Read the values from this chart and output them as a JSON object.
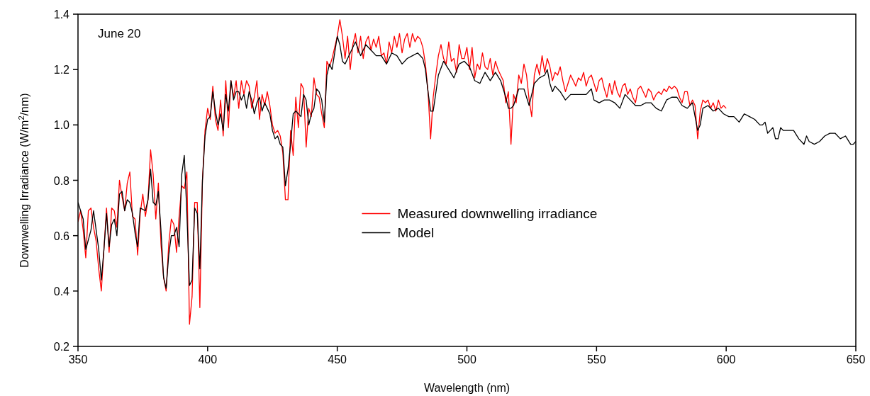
{
  "chart_data": {
    "type": "line",
    "xlabel": "Wavelength (nm)",
    "ylabel": "Downwelling Irradiance (W/m$^{2}$/nm)",
    "annotations": [
      "June 20"
    ],
    "xlim": [
      350,
      650
    ],
    "ylim": [
      0.2,
      1.4
    ],
    "xticks": [
      350,
      400,
      450,
      500,
      550,
      600,
      650
    ],
    "yticks": [
      0.2,
      0.4,
      0.6,
      0.8,
      {
        "value": 1,
        "label": "1.0"
      },
      1.2,
      1.4
    ],
    "grid": false,
    "legend": "center",
    "line_style": "solid",
    "series": [
      {
        "name": "Measured downwelling irradiance",
        "color": "#ff0000",
        "x": [
          350,
          351,
          352,
          353,
          354,
          355,
          356,
          357,
          358,
          359,
          360,
          361,
          362,
          363,
          364,
          365,
          366,
          367,
          368,
          369,
          370,
          371,
          372,
          373,
          374,
          375,
          376,
          377,
          378,
          379,
          380,
          381,
          382,
          383,
          384,
          385,
          386,
          387,
          388,
          389,
          390,
          391,
          392,
          393,
          394,
          395,
          396,
          397,
          398,
          399,
          400,
          401,
          402,
          403,
          404,
          405,
          406,
          407,
          408,
          409,
          410,
          411,
          412,
          413,
          414,
          415,
          416,
          417,
          418,
          419,
          420,
          421,
          422,
          423,
          424,
          425,
          426,
          427,
          428,
          429,
          430,
          431,
          432,
          433,
          434,
          435,
          436,
          437,
          438,
          439,
          440,
          441,
          442,
          443,
          444,
          445,
          446,
          447,
          448,
          449,
          450,
          451,
          452,
          453,
          454,
          455,
          456,
          457,
          458,
          459,
          460,
          461,
          462,
          463,
          464,
          465,
          466,
          467,
          468,
          469,
          470,
          471,
          472,
          473,
          474,
          475,
          476,
          477,
          478,
          479,
          480,
          481,
          482,
          483,
          484,
          485,
          486,
          487,
          488,
          489,
          490,
          491,
          492,
          493,
          494,
          495,
          496,
          497,
          498,
          499,
          500,
          501,
          502,
          503,
          504,
          505,
          506,
          507,
          508,
          509,
          510,
          511,
          512,
          513,
          514,
          515,
          516,
          517,
          518,
          519,
          520,
          521,
          522,
          523,
          524,
          525,
          526,
          527,
          528,
          529,
          530,
          531,
          532,
          533,
          534,
          535,
          536,
          537,
          538,
          539,
          540,
          541,
          542,
          543,
          544,
          545,
          546,
          547,
          548,
          549,
          550,
          551,
          552,
          553,
          554,
          555,
          556,
          557,
          558,
          559,
          560,
          561,
          562,
          563,
          564,
          565,
          566,
          567,
          568,
          569,
          570,
          571,
          572,
          573,
          574,
          575,
          576,
          577,
          578,
          579,
          580,
          581,
          582,
          583,
          584,
          585,
          586,
          587,
          588,
          589,
          590,
          591,
          592,
          593,
          594,
          595,
          596,
          597,
          598,
          599,
          600
        ],
        "values": [
          0.65,
          0.69,
          0.62,
          0.52,
          0.69,
          0.7,
          0.63,
          0.58,
          0.48,
          0.4,
          0.55,
          0.7,
          0.54,
          0.7,
          0.69,
          0.63,
          0.8,
          0.74,
          0.69,
          0.79,
          0.83,
          0.67,
          0.66,
          0.53,
          0.68,
          0.75,
          0.67,
          0.73,
          0.91,
          0.82,
          0.66,
          0.79,
          0.57,
          0.45,
          0.4,
          0.57,
          0.66,
          0.64,
          0.54,
          0.67,
          0.78,
          0.77,
          0.83,
          0.28,
          0.38,
          0.72,
          0.72,
          0.34,
          0.8,
          0.98,
          1.06,
          1.02,
          1.14,
          1.02,
          0.98,
          1.09,
          0.96,
          1.16,
          0.99,
          1.16,
          1.1,
          1.16,
          1.06,
          1.16,
          1.11,
          1.16,
          1.14,
          1.06,
          1.1,
          1.16,
          1.02,
          1.11,
          1.07,
          1.12,
          1.07,
          1.0,
          0.97,
          0.98,
          0.96,
          0.9,
          0.73,
          0.73,
          0.98,
          0.89,
          1.1,
          0.99,
          1.15,
          1.13,
          0.92,
          1.06,
          1.03,
          1.17,
          1.11,
          1.1,
          1.04,
          0.99,
          1.23,
          1.21,
          1.24,
          1.28,
          1.32,
          1.38,
          1.32,
          1.24,
          1.32,
          1.2,
          1.29,
          1.33,
          1.26,
          1.32,
          1.24,
          1.3,
          1.32,
          1.27,
          1.31,
          1.28,
          1.32,
          1.25,
          1.26,
          1.22,
          1.3,
          1.26,
          1.32,
          1.28,
          1.33,
          1.26,
          1.31,
          1.33,
          1.28,
          1.33,
          1.3,
          1.32,
          1.31,
          1.28,
          1.22,
          1.12,
          0.95,
          1.1,
          1.18,
          1.25,
          1.29,
          1.24,
          1.22,
          1.3,
          1.23,
          1.24,
          1.19,
          1.29,
          1.24,
          1.24,
          1.28,
          1.2,
          1.28,
          1.17,
          1.22,
          1.2,
          1.26,
          1.21,
          1.2,
          1.24,
          1.18,
          1.23,
          1.2,
          1.18,
          1.16,
          1.08,
          1.12,
          0.93,
          1.11,
          1.08,
          1.18,
          1.15,
          1.22,
          1.18,
          1.09,
          1.03,
          1.18,
          1.22,
          1.18,
          1.25,
          1.19,
          1.24,
          1.21,
          1.16,
          1.19,
          1.18,
          1.21,
          1.16,
          1.12,
          1.15,
          1.18,
          1.16,
          1.14,
          1.17,
          1.16,
          1.19,
          1.14,
          1.17,
          1.18,
          1.15,
          1.12,
          1.16,
          1.17,
          1.13,
          1.1,
          1.15,
          1.11,
          1.16,
          1.12,
          1.1,
          1.14,
          1.15,
          1.11,
          1.13,
          1.1,
          1.08,
          1.13,
          1.14,
          1.12,
          1.1,
          1.13,
          1.12,
          1.09,
          1.11,
          1.12,
          1.11,
          1.13,
          1.12,
          1.14,
          1.13,
          1.14,
          1.13,
          1.1,
          1.08,
          1.12,
          1.12,
          1.07,
          1.09,
          1.07,
          0.95,
          1.05,
          1.09,
          1.08,
          1.09,
          1.06,
          1.08,
          1.05,
          1.09,
          1.06,
          1.07,
          1.06
        ]
      },
      {
        "name": "Model",
        "color": "#000000",
        "x": [
          350,
          352,
          353,
          355,
          356,
          357,
          358,
          359,
          360,
          361,
          362,
          363,
          364,
          365,
          366,
          367,
          368,
          369,
          370,
          371,
          372,
          373,
          374,
          376,
          377,
          378,
          379,
          380,
          381,
          382,
          383,
          384,
          385,
          386,
          387,
          388,
          389,
          390,
          391,
          392,
          393,
          394,
          395,
          396,
          397,
          398,
          399,
          400,
          401,
          402,
          403,
          404,
          405,
          406,
          407,
          408,
          409,
          410,
          411,
          412,
          413,
          414,
          415,
          416,
          417,
          418,
          419,
          420,
          421,
          422,
          423,
          424,
          425,
          426,
          427,
          428,
          429,
          430,
          431,
          432,
          433,
          434,
          435,
          436,
          437,
          438,
          439,
          440,
          441,
          442,
          443,
          444,
          445,
          446,
          447,
          448,
          449,
          450,
          451,
          452,
          453,
          455,
          457,
          459,
          461,
          463,
          465,
          467,
          469,
          471,
          473,
          475,
          477,
          479,
          481,
          483,
          484,
          485,
          486,
          487,
          489,
          491,
          493,
          495,
          497,
          499,
          501,
          503,
          505,
          507,
          509,
          511,
          513,
          515,
          516,
          517,
          518,
          520,
          522,
          524,
          526,
          528,
          530,
          531,
          532,
          533,
          534,
          536,
          538,
          540,
          542,
          544,
          546,
          548,
          549,
          551,
          553,
          555,
          557,
          559,
          561,
          563,
          565,
          567,
          569,
          571,
          573,
          575,
          577,
          579,
          581,
          583,
          585,
          587,
          589,
          590,
          591,
          593,
          595,
          597,
          599,
          601,
          603,
          605,
          607,
          609,
          611,
          613,
          614,
          615,
          616,
          617,
          618,
          619,
          620,
          621,
          622,
          624,
          626,
          628,
          630,
          631,
          632,
          634,
          636,
          638,
          640,
          642,
          644,
          646,
          648,
          649,
          650
        ],
        "values": [
          0.72,
          0.66,
          0.55,
          0.62,
          0.69,
          0.62,
          0.55,
          0.44,
          0.55,
          0.68,
          0.56,
          0.64,
          0.66,
          0.6,
          0.75,
          0.76,
          0.69,
          0.73,
          0.72,
          0.68,
          0.61,
          0.56,
          0.7,
          0.69,
          0.73,
          0.84,
          0.72,
          0.71,
          0.76,
          0.62,
          0.45,
          0.41,
          0.53,
          0.6,
          0.6,
          0.63,
          0.56,
          0.82,
          0.89,
          0.68,
          0.42,
          0.44,
          0.7,
          0.68,
          0.48,
          0.8,
          0.96,
          1.02,
          1.03,
          1.12,
          1.05,
          1.0,
          1.04,
          0.98,
          1.11,
          1.05,
          1.16,
          1.09,
          1.12,
          1.12,
          1.09,
          1.11,
          1.06,
          1.12,
          1.09,
          1.04,
          1.08,
          1.1,
          1.05,
          1.08,
          1.06,
          1.04,
          0.98,
          0.95,
          0.96,
          0.93,
          0.92,
          0.78,
          0.84,
          0.93,
          1.04,
          1.05,
          1.04,
          1.03,
          1.11,
          1.09,
          1.0,
          1.04,
          1.06,
          1.13,
          1.12,
          1.09,
          1.01,
          1.18,
          1.22,
          1.2,
          1.26,
          1.32,
          1.29,
          1.23,
          1.22,
          1.26,
          1.3,
          1.25,
          1.29,
          1.27,
          1.25,
          1.25,
          1.22,
          1.26,
          1.25,
          1.22,
          1.24,
          1.25,
          1.26,
          1.24,
          1.2,
          1.12,
          1.05,
          1.05,
          1.18,
          1.23,
          1.2,
          1.17,
          1.22,
          1.23,
          1.21,
          1.16,
          1.15,
          1.19,
          1.16,
          1.19,
          1.16,
          1.1,
          1.06,
          1.06,
          1.07,
          1.13,
          1.13,
          1.07,
          1.15,
          1.17,
          1.18,
          1.2,
          1.15,
          1.12,
          1.14,
          1.12,
          1.09,
          1.11,
          1.11,
          1.11,
          1.11,
          1.13,
          1.09,
          1.08,
          1.09,
          1.09,
          1.08,
          1.06,
          1.11,
          1.09,
          1.07,
          1.07,
          1.08,
          1.08,
          1.06,
          1.05,
          1.09,
          1.1,
          1.1,
          1.07,
          1.06,
          1.08,
          0.98,
          1.0,
          1.06,
          1.07,
          1.05,
          1.06,
          1.04,
          1.03,
          1.03,
          1.01,
          1.04,
          1.03,
          1.02,
          1.0,
          1.0,
          1.01,
          0.97,
          0.98,
          0.99,
          0.95,
          0.95,
          0.99,
          0.98,
          0.98,
          0.98,
          0.95,
          0.93,
          0.96,
          0.94,
          0.93,
          0.94,
          0.96,
          0.97,
          0.97,
          0.95,
          0.96,
          0.93,
          0.93,
          0.94
        ]
      }
    ]
  }
}
